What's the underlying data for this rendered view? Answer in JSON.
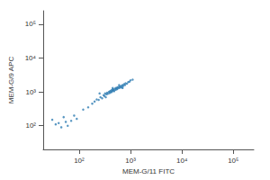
{
  "chart_data": {
    "type": "scatter",
    "x_label": "MEM-G/11 FITC",
    "y_label": "MEM-G/9 APC",
    "log": true,
    "grid": false,
    "color": "#2f7db3",
    "marker": "circle",
    "xlim": [
      20,
      250000
    ],
    "ylim": [
      20,
      250000
    ],
    "xticks": [
      {
        "value": 100,
        "label": "10²"
      },
      {
        "value": 1000,
        "label": "10³"
      },
      {
        "value": 10000,
        "label": "10⁴"
      },
      {
        "value": 100000,
        "label": "10⁵"
      }
    ],
    "yticks": [
      {
        "value": 100,
        "label": "10²"
      },
      {
        "value": 1000,
        "label": "10³"
      },
      {
        "value": 10000,
        "label": "10⁴"
      },
      {
        "value": 100000,
        "label": "10⁵"
      }
    ],
    "points": [
      [
        180,
        450
      ],
      [
        200,
        520
      ],
      [
        220,
        600
      ],
      [
        240,
        580
      ],
      [
        260,
        700
      ],
      [
        280,
        650
      ],
      [
        300,
        800
      ],
      [
        310,
        760
      ],
      [
        320,
        900
      ],
      [
        340,
        850
      ],
      [
        350,
        950
      ],
      [
        360,
        880
      ],
      [
        380,
        1000
      ],
      [
        390,
        920
      ],
      [
        400,
        1050
      ],
      [
        410,
        980
      ],
      [
        420,
        1100
      ],
      [
        430,
        1000
      ],
      [
        440,
        1150
      ],
      [
        450,
        1080
      ],
      [
        460,
        1200
      ],
      [
        470,
        1120
      ],
      [
        480,
        1050
      ],
      [
        500,
        1250
      ],
      [
        510,
        1150
      ],
      [
        520,
        1300
      ],
      [
        540,
        1200
      ],
      [
        550,
        1350
      ],
      [
        560,
        1250
      ],
      [
        580,
        1400
      ],
      [
        600,
        1300
      ],
      [
        620,
        1450
      ],
      [
        640,
        1350
      ],
      [
        660,
        1500
      ],
      [
        680,
        1400
      ],
      [
        700,
        1600
      ],
      [
        720,
        1500
      ],
      [
        750,
        1700
      ],
      [
        780,
        1600
      ],
      [
        800,
        1800
      ],
      [
        850,
        1750
      ],
      [
        900,
        1950
      ],
      [
        950,
        2000
      ],
      [
        1000,
        2200
      ],
      [
        1100,
        2300
      ],
      [
        250,
        900
      ],
      [
        330,
        700
      ],
      [
        450,
        1300
      ],
      [
        600,
        1600
      ],
      [
        700,
        1300
      ],
      [
        150,
        350
      ],
      [
        120,
        300
      ],
      [
        30,
        150
      ],
      [
        40,
        120
      ],
      [
        50,
        180
      ],
      [
        60,
        100
      ],
      [
        45,
        90
      ],
      [
        70,
        140
      ],
      [
        80,
        200
      ],
      [
        35,
        110
      ],
      [
        90,
        160
      ],
      [
        55,
        130
      ]
    ]
  }
}
